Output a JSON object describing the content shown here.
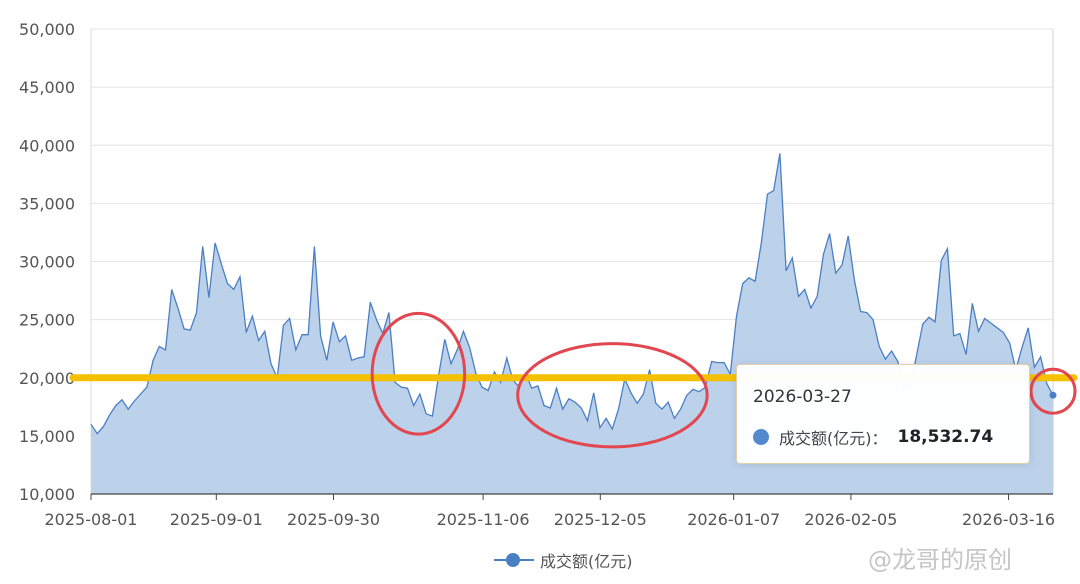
{
  "chart_data": {
    "type": "area",
    "y_ticks": [
      "50,000",
      "45,000",
      "40,000",
      "35,000",
      "30,000",
      "25,000",
      "20,000",
      "15,000",
      "10,000"
    ],
    "x_ticks": [
      "2025-08-01",
      "2025-09-01",
      "2025-09-30",
      "2025-11-06",
      "2025-12-05",
      "2026-01-07",
      "2026-02-05",
      "2026-03-16"
    ],
    "ylim": [
      10000,
      50000
    ],
    "grid": "horizontal",
    "series": [
      {
        "name": "成交额(亿元)",
        "color": "#4b7fc5",
        "fill": "#bcd1ea",
        "values": [
          16000,
          15200,
          15800,
          16800,
          17600,
          18100,
          17300,
          18000,
          18600,
          19200,
          21500,
          22700,
          22400,
          27600,
          26000,
          24200,
          24100,
          25600,
          31300,
          26900,
          31600,
          29800,
          28100,
          27600,
          28700,
          23900,
          25300,
          23200,
          24000,
          21200,
          20000,
          24500,
          25100,
          22400,
          23700,
          23700,
          31300,
          23600,
          21500,
          24800,
          23100,
          23600,
          21500,
          21700,
          21800,
          26500,
          25000,
          23800,
          25600,
          19600,
          19200,
          19100,
          17600,
          18600,
          16900,
          16700,
          20200,
          23300,
          21200,
          22400,
          24000,
          22600,
          20400,
          19200,
          18900,
          20500,
          19600,
          21700,
          19800,
          19200,
          20400,
          19100,
          19300,
          17600,
          17400,
          19100,
          17300,
          18200,
          17900,
          17400,
          16300,
          18700,
          15700,
          16500,
          15600,
          17300,
          19900,
          18700,
          17800,
          18600,
          20700,
          17800,
          17300,
          17900,
          16500,
          17300,
          18500,
          19000,
          18800,
          19200,
          21400,
          21300,
          21300,
          20300,
          25300,
          28100,
          28600,
          28300,
          31600,
          35800,
          36100,
          39300,
          29200,
          30300,
          27000,
          27600,
          26000,
          27000,
          30600,
          32400,
          29000,
          29700,
          32200,
          28400,
          25700,
          25600,
          25000,
          22700,
          21600,
          22300,
          21400,
          19200,
          19300,
          21900,
          24600,
          25200,
          24800,
          30100,
          31100,
          23600,
          23800,
          22000,
          26400,
          24000,
          25100,
          24700,
          24300,
          23900,
          23000,
          20700,
          22600,
          24300,
          20900,
          21800,
          19500,
          18500
        ]
      }
    ],
    "reference_line": {
      "value": 20000,
      "color": "#f5c000"
    },
    "highlight_circles": [
      {
        "x_start": "2025-10-15",
        "x_end": "2025-10-27",
        "color": "#e2474f"
      },
      {
        "x_start": "2025-11-20",
        "x_end": "2025-12-26",
        "color": "#e2474f"
      },
      {
        "x_start": "2026-03-27",
        "x_end": "2026-03-27",
        "color": "#e2474f"
      }
    ]
  },
  "tooltip": {
    "date": "2026-03-27",
    "label": "成交额(亿元)：",
    "value": "18,532.74"
  },
  "legend": {
    "label": "成交额(亿元)"
  },
  "watermark": "@龙哥的原创"
}
